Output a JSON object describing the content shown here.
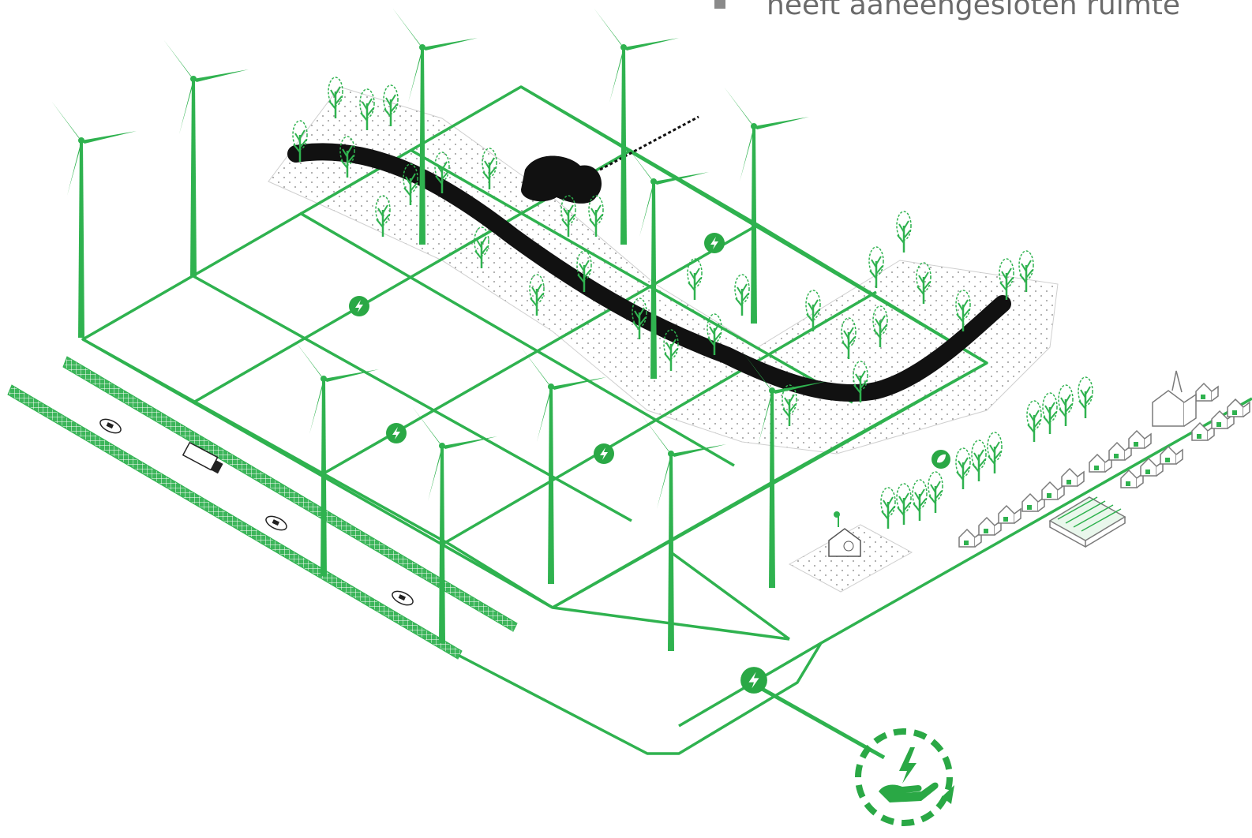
{
  "caption": {
    "text": "heeft aaneengesloten ruimte",
    "bullet": "square-bullet"
  },
  "colors": {
    "grid": "#2fb24f",
    "grid_dark": "#1f9a3f",
    "road": "#111111",
    "dotted_ground": "#9a9a9a",
    "house_outline": "#7a7a7a",
    "accent_bg": "#2aa845"
  },
  "diagram": {
    "title": "",
    "icons": [
      "wind-turbine-icon",
      "tree-icon",
      "solar-panel-icon",
      "car-icon",
      "truck-icon",
      "house-icon",
      "church-icon",
      "greenhouse-icon",
      "energy-bolt-icon",
      "leaf-icon",
      "hand-energy-cycle-icon"
    ]
  }
}
